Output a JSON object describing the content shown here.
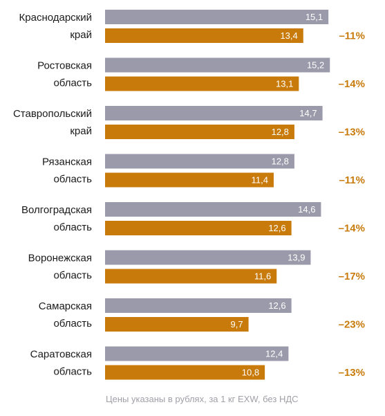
{
  "chart_data": {
    "type": "bar",
    "orientation": "horizontal",
    "categories": [
      [
        "Краснодарский",
        "край"
      ],
      [
        "Ростовская",
        "область"
      ],
      [
        "Ставропольский",
        "край"
      ],
      [
        "Рязанская",
        "область"
      ],
      [
        "Волгоградская",
        "область"
      ],
      [
        "Воронежская",
        "область"
      ],
      [
        "Самарская",
        "область"
      ],
      [
        "Саратовская",
        "область"
      ]
    ],
    "series": [
      {
        "values": [
          15.1,
          15.2,
          14.7,
          12.8,
          14.6,
          13.9,
          12.6,
          12.4
        ],
        "color": "#9a9aab"
      },
      {
        "values": [
          13.4,
          13.1,
          12.8,
          11.4,
          12.6,
          11.6,
          9.7,
          10.8
        ],
        "color": "#c87a0a"
      }
    ],
    "value_labels": [
      [
        "15,1",
        "13,4"
      ],
      [
        "15,2",
        "13,1"
      ],
      [
        "14,7",
        "12,8"
      ],
      [
        "12,8",
        "11,4"
      ],
      [
        "14,6",
        "12,6"
      ],
      [
        "13,9",
        "11,6"
      ],
      [
        "12,6",
        "9,7"
      ],
      [
        "12,4",
        "10,8"
      ]
    ],
    "changes": [
      "–11%",
      "–14%",
      "–13%",
      "–11%",
      "–14%",
      "–17%",
      "–23%",
      "–13%"
    ],
    "change_color": "#c87a0a",
    "xlim": [
      0,
      17
    ],
    "grid": false,
    "legend": "none"
  },
  "footnote": "Цены указаны в рублях, за 1 кг EXW, без НДС"
}
